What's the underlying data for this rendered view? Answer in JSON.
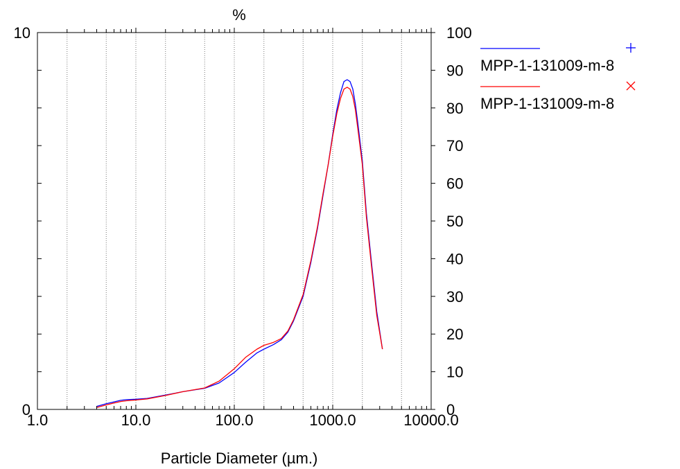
{
  "chart_data": {
    "type": "line",
    "title": "%",
    "xlabel": "Particle Diameter (µm.)",
    "x_scale": "log",
    "xlim": [
      1.0,
      10000.0
    ],
    "x_ticks": [
      "1.0",
      "10.0",
      "100.0",
      "1000.0",
      "10000.0"
    ],
    "ylim_left": [
      0,
      10
    ],
    "y_ticks_left": [
      "0",
      "10"
    ],
    "ylim_right": [
      0,
      100
    ],
    "y_ticks_right": [
      "0",
      "10",
      "20",
      "30",
      "40",
      "50",
      "60",
      "70",
      "80",
      "90",
      "100"
    ],
    "grid": "vertical dotted at decades and ×2, ×5",
    "legend_position": "right",
    "series": [
      {
        "name": "MPP-1-131009-m-8",
        "color": "#0000ff",
        "marker": "plus",
        "x": [
          4.0,
          5.0,
          6.0,
          7.0,
          8.0,
          10.0,
          13.0,
          20.0,
          30.0,
          50.0,
          70.0,
          100.0,
          130.0,
          170.0,
          200.0,
          250.0,
          300.0,
          350.0,
          400.0,
          500.0,
          600.0,
          700.0,
          800.0,
          900.0,
          1000.0,
          1100.0,
          1200.0,
          1300.0,
          1400.0,
          1500.0,
          1600.0,
          1700.0,
          1800.0,
          2000.0,
          2200.0,
          2500.0,
          2800.0,
          3200.0
        ],
        "y": [
          0.08,
          0.15,
          0.2,
          0.24,
          0.26,
          0.27,
          0.29,
          0.38,
          0.47,
          0.56,
          0.7,
          0.98,
          1.25,
          1.5,
          1.6,
          1.72,
          1.85,
          2.05,
          2.35,
          3.0,
          3.9,
          4.8,
          5.7,
          6.5,
          7.3,
          7.95,
          8.4,
          8.7,
          8.75,
          8.7,
          8.5,
          8.1,
          7.6,
          6.6,
          5.2,
          3.8,
          2.6,
          1.6
        ]
      },
      {
        "name": "MPP-1-131009-m-8",
        "color": "#ff0000",
        "marker": "cross",
        "x": [
          4.0,
          5.0,
          6.0,
          7.0,
          8.0,
          10.0,
          13.0,
          20.0,
          30.0,
          50.0,
          70.0,
          100.0,
          130.0,
          170.0,
          200.0,
          250.0,
          300.0,
          350.0,
          400.0,
          500.0,
          600.0,
          700.0,
          800.0,
          900.0,
          1000.0,
          1100.0,
          1200.0,
          1300.0,
          1400.0,
          1500.0,
          1600.0,
          1700.0,
          1800.0,
          2000.0,
          2200.0,
          2500.0,
          2800.0,
          3200.0
        ],
        "y": [
          0.05,
          0.12,
          0.17,
          0.21,
          0.23,
          0.25,
          0.28,
          0.37,
          0.47,
          0.57,
          0.75,
          1.08,
          1.38,
          1.6,
          1.7,
          1.78,
          1.88,
          2.08,
          2.38,
          3.05,
          3.95,
          4.85,
          5.75,
          6.5,
          7.25,
          7.85,
          8.25,
          8.5,
          8.55,
          8.5,
          8.3,
          7.95,
          7.45,
          6.5,
          5.1,
          3.7,
          2.5,
          1.6
        ]
      }
    ]
  }
}
